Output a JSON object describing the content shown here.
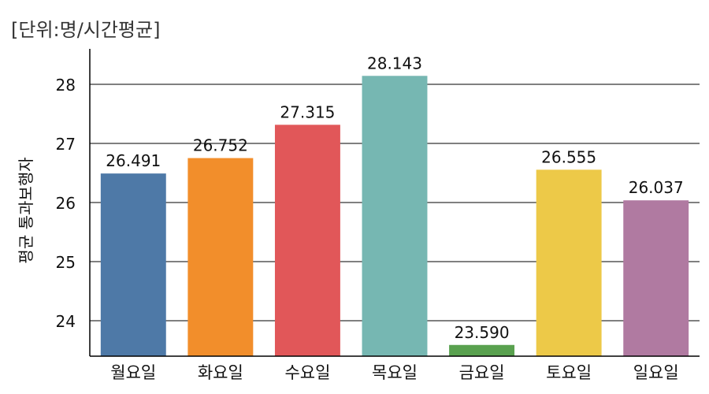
{
  "unit_label": "[단위:명/시간평균]",
  "chart_data": {
    "type": "bar",
    "title": "",
    "xlabel": "",
    "ylabel": "평균 통과보행자",
    "categories": [
      "월요일",
      "화요일",
      "수요일",
      "목요일",
      "금요일",
      "토요일",
      "일요일"
    ],
    "values": [
      26.491,
      26.752,
      27.315,
      28.143,
      23.59,
      26.555,
      26.037
    ],
    "value_labels": [
      "26.491",
      "26.752",
      "27.315",
      "28.143",
      "23.590",
      "26.555",
      "26.037"
    ],
    "colors": [
      "#4e79a7",
      "#f28e2b",
      "#e15759",
      "#76b7b2",
      "#59a14f",
      "#edc948",
      "#b07aa1"
    ],
    "ylim": [
      23.4,
      28.6
    ],
    "yticks": [
      24,
      25,
      26,
      27,
      28
    ],
    "grid": true
  }
}
